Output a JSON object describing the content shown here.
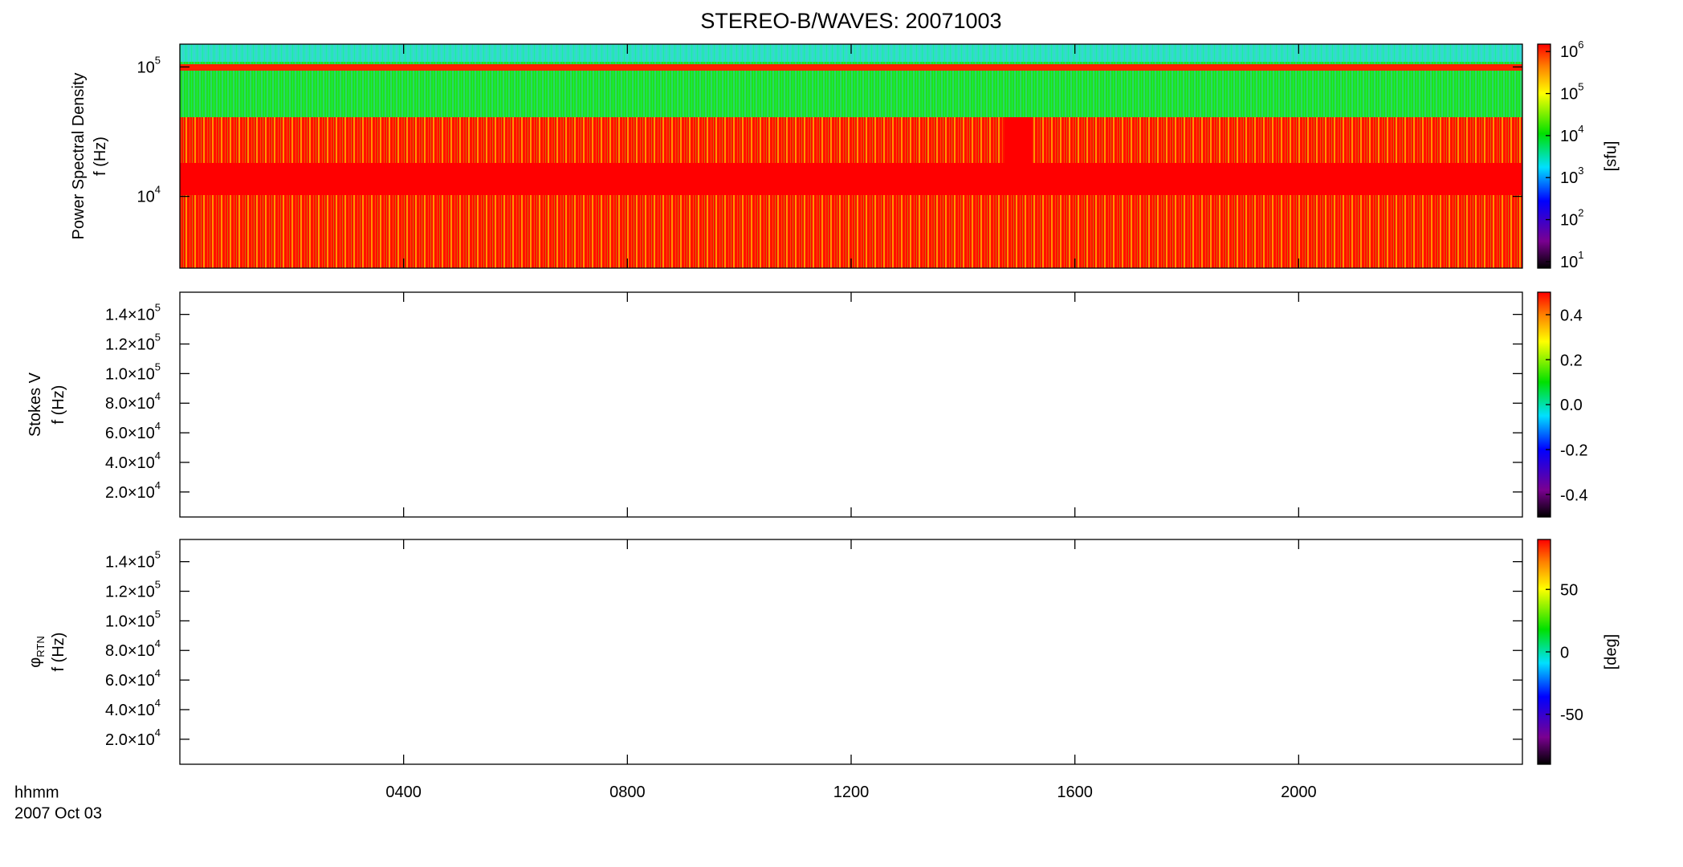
{
  "title": "STEREO-B/WAVES: 20071003",
  "chart_data": [
    {
      "type": "heatmap",
      "ylabel": [
        {
          "text": "Power Spectral Density"
        },
        {
          "text": "f (Hz)"
        }
      ],
      "xlim": [
        0,
        24
      ],
      "xticks": [
        {
          "value": 4,
          "label": "0400"
        },
        {
          "value": 8,
          "label": "0800"
        },
        {
          "value": 12,
          "label": "1200"
        },
        {
          "value": 16,
          "label": "1600"
        },
        {
          "value": 20,
          "label": "2000"
        }
      ],
      "ylim": [
        2790,
        150000
      ],
      "ylog": true,
      "yticks": [
        {
          "value": 10000,
          "label": "10",
          "exp": "4"
        },
        {
          "value": 100000,
          "label": "10",
          "exp": "5"
        }
      ],
      "colorbar": {
        "label": "[sfu]",
        "lim": [
          7,
          1500000
        ],
        "log": true,
        "ticks": [
          {
            "value": 10,
            "label": "10",
            "exp": "1"
          },
          {
            "value": 100,
            "label": "10",
            "exp": "2"
          },
          {
            "value": 1000,
            "label": "10",
            "exp": "3"
          },
          {
            "value": 10000,
            "label": "10",
            "exp": "4"
          },
          {
            "value": 100000,
            "label": "10",
            "exp": "5"
          },
          {
            "value": 1000000,
            "label": "10",
            "exp": "6"
          }
        ]
      }
    },
    {
      "type": "heatmap",
      "ylabel": [
        {
          "text": "Stokes V"
        },
        {
          "text": "f (Hz)"
        }
      ],
      "xlim": [
        0,
        24
      ],
      "xticks": [
        {
          "value": 4,
          "label": "0400"
        },
        {
          "value": 8,
          "label": "0800"
        },
        {
          "value": 12,
          "label": "1200"
        },
        {
          "value": 16,
          "label": "1600"
        },
        {
          "value": 20,
          "label": "2000"
        }
      ],
      "ylim": [
        3100,
        155000
      ],
      "ylog": false,
      "yticks": [
        {
          "value": 20000,
          "label": "2.0×10",
          "exp": "4"
        },
        {
          "value": 40000,
          "label": "4.0×10",
          "exp": "4"
        },
        {
          "value": 60000,
          "label": "6.0×10",
          "exp": "4"
        },
        {
          "value": 80000,
          "label": "8.0×10",
          "exp": "4"
        },
        {
          "value": 100000,
          "label": "1.0×10",
          "exp": "5"
        },
        {
          "value": 120000,
          "label": "1.2×10",
          "exp": "5"
        },
        {
          "value": 140000,
          "label": "1.4×10",
          "exp": "5"
        }
      ],
      "colorbar": {
        "lim": [
          -0.5,
          0.5
        ],
        "log": false,
        "ticks": [
          -0.4,
          -0.2,
          {
            "value": 0,
            "label": "0.0"
          },
          0.2,
          0.4
        ]
      }
    },
    {
      "type": "heatmap",
      "ylabel": [
        {
          "text": "φ",
          "sub": "RTN"
        },
        {
          "text": "f (Hz)"
        }
      ],
      "xlim": [
        0,
        24
      ],
      "xticks": [
        {
          "value": 4,
          "label": "0400"
        },
        {
          "value": 8,
          "label": "0800"
        },
        {
          "value": 12,
          "label": "1200"
        },
        {
          "value": 16,
          "label": "1600"
        },
        {
          "value": 20,
          "label": "2000"
        }
      ],
      "ylim": [
        3100,
        155000
      ],
      "ylog": false,
      "yticks": [
        {
          "value": 20000,
          "label": "2.0×10",
          "exp": "4"
        },
        {
          "value": 40000,
          "label": "4.0×10",
          "exp": "4"
        },
        {
          "value": 60000,
          "label": "6.0×10",
          "exp": "4"
        },
        {
          "value": 80000,
          "label": "8.0×10",
          "exp": "4"
        },
        {
          "value": 100000,
          "label": "1.0×10",
          "exp": "5"
        },
        {
          "value": 120000,
          "label": "1.2×10",
          "exp": "5"
        },
        {
          "value": 140000,
          "label": "1.4×10",
          "exp": "5"
        }
      ],
      "colorbar": {
        "label": "[deg]",
        "lim": [
          -90,
          90
        ],
        "log": false,
        "ticks": [
          -50,
          0,
          50
        ]
      },
      "xlabel": "hhmm",
      "date": "2007 Oct 03"
    }
  ]
}
